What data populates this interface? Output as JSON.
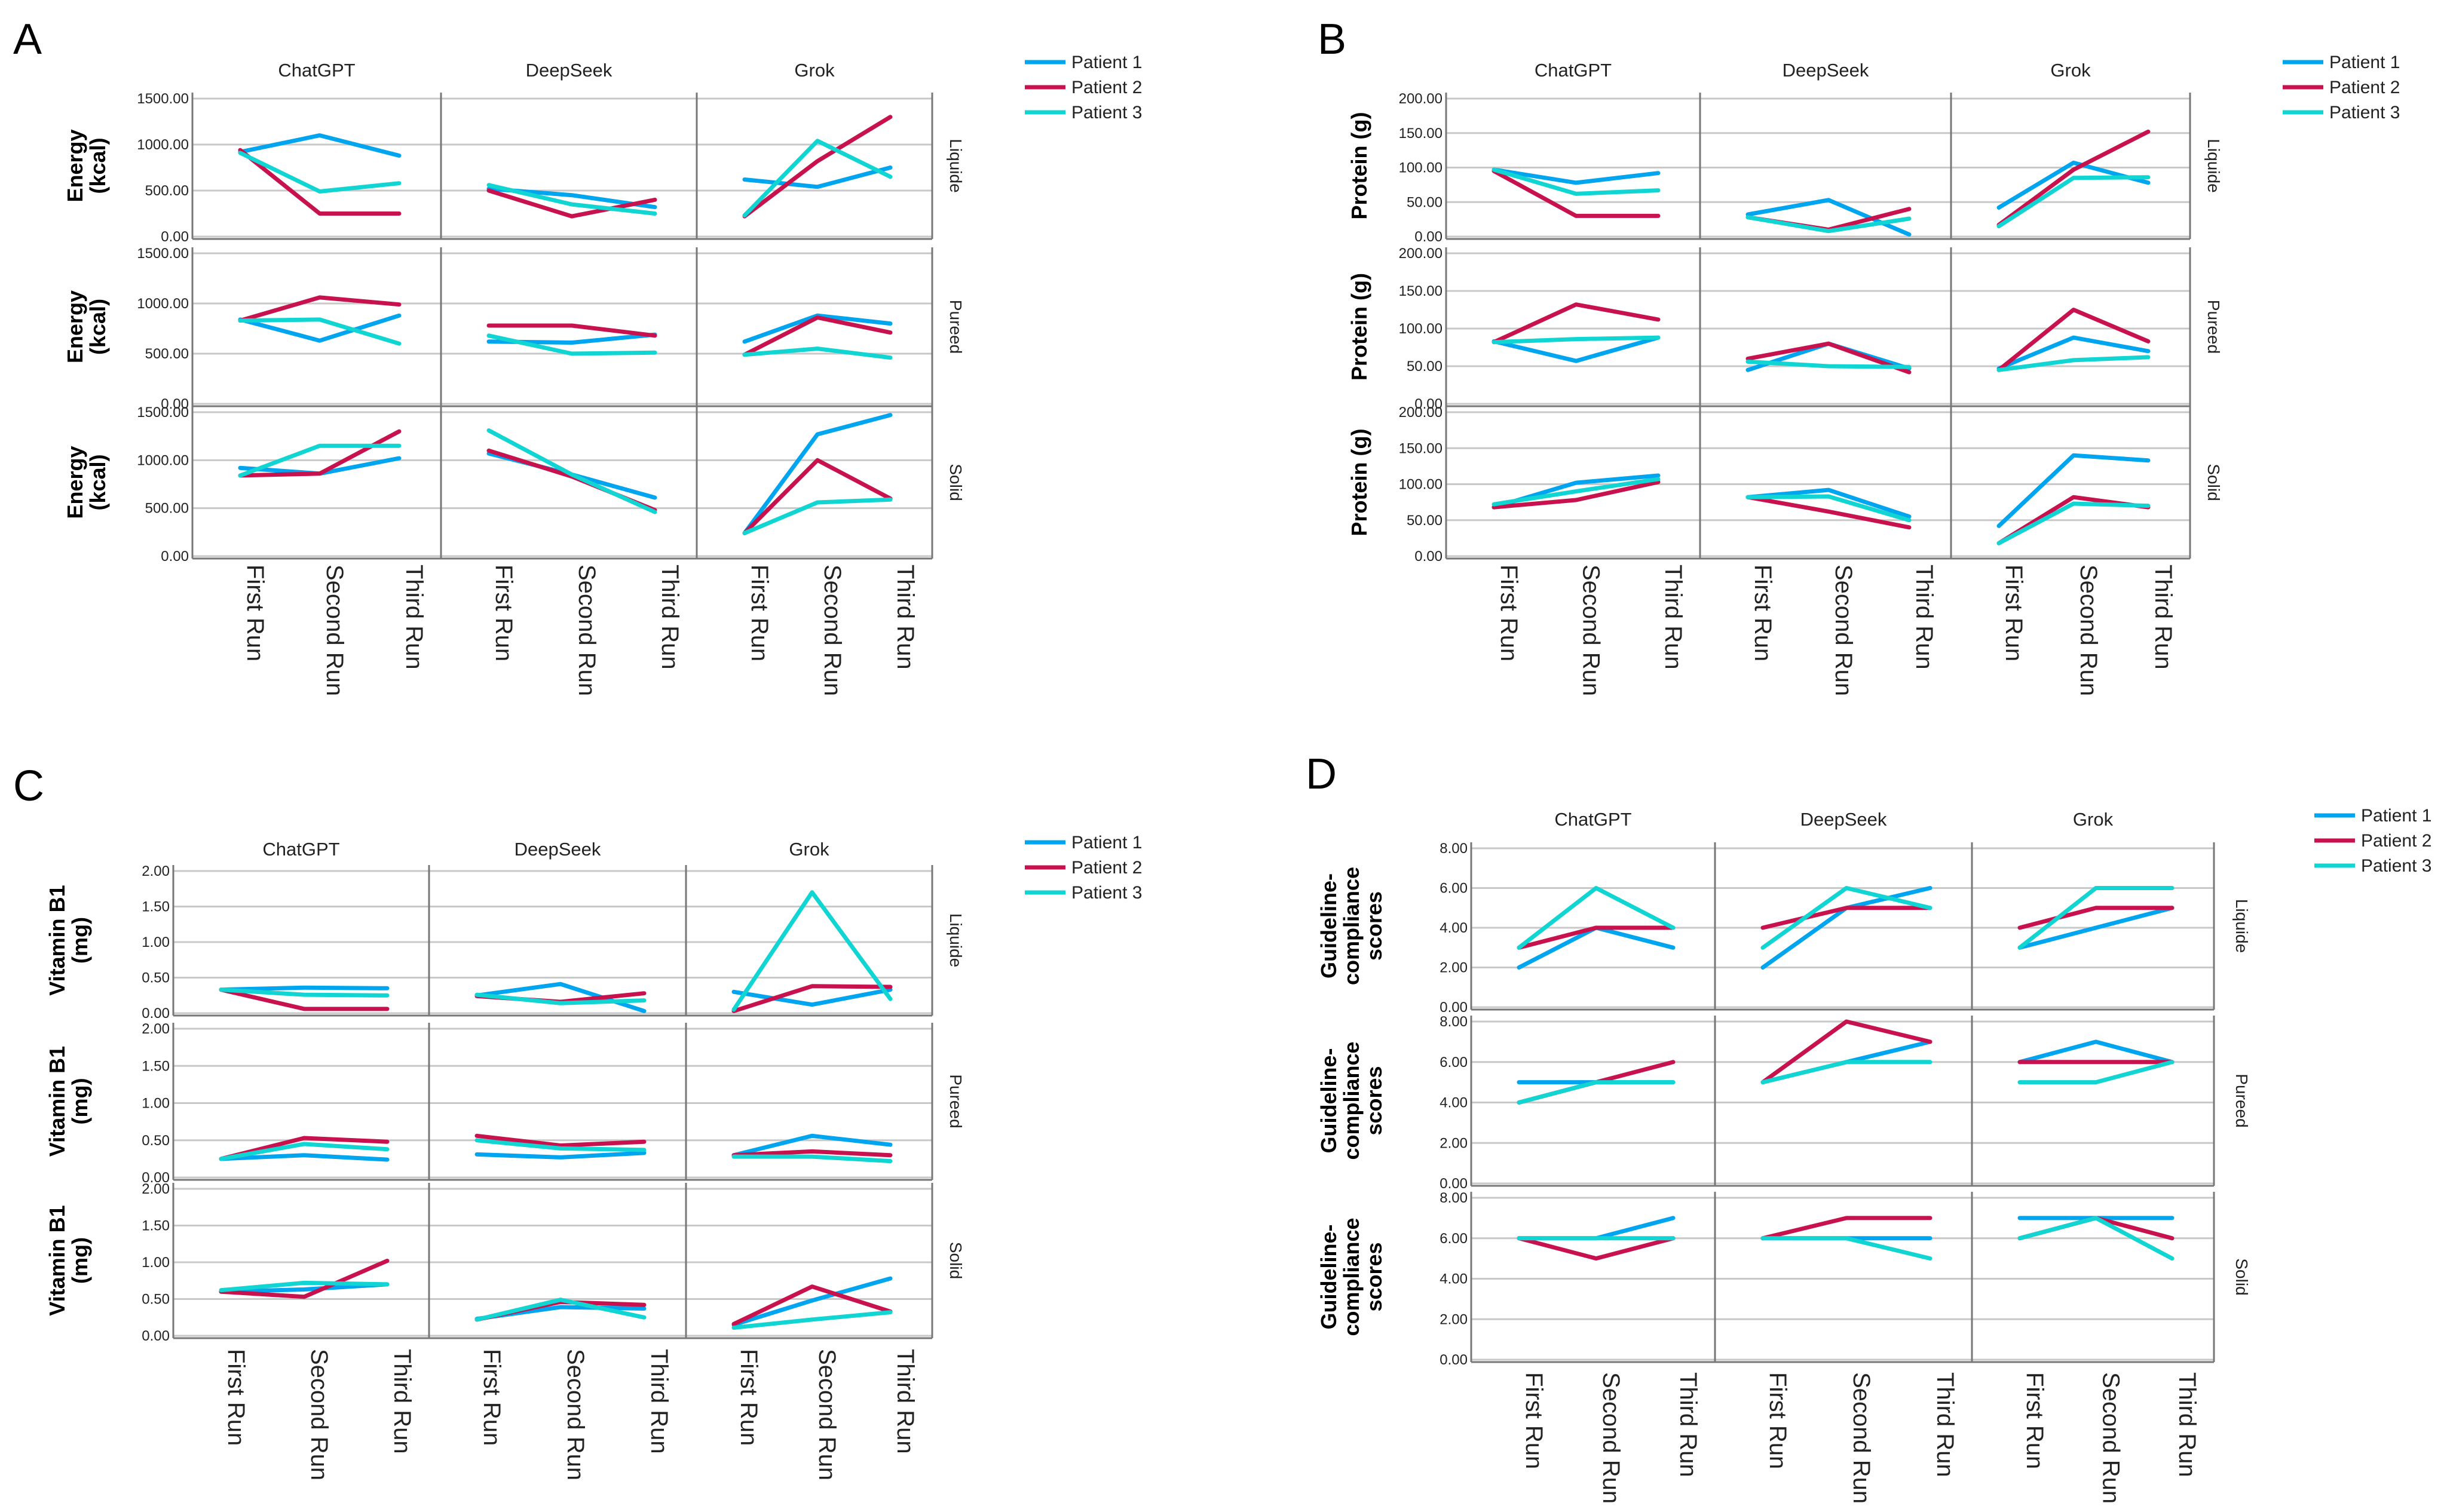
{
  "chart_data": [
    {
      "type": "line",
      "panel": "A",
      "ylabel": "Energy (kcal)",
      "ylabel_lines": [
        "Energy",
        "(kcal)"
      ],
      "ylim": [
        0,
        1500
      ],
      "yticks": [
        "0.00",
        "500.00",
        "1000.00",
        "1500.00"
      ],
      "ytick_values": [
        0,
        500,
        1000,
        1500
      ],
      "columns": [
        "ChatGPT",
        "DeepSeek",
        "Grok"
      ],
      "rows": [
        "Liquide",
        "Pureed",
        "Solid"
      ],
      "categories": [
        "First Run",
        "Second Run",
        "Third Run"
      ],
      "legend": [
        "Patient 1",
        "Patient 2",
        "Patient 3"
      ],
      "values": [
        [
          [
            [
              920,
              1100,
              880
            ],
            [
              940,
              250,
              250
            ],
            [
              910,
              490,
              580
            ]
          ],
          [
            [
              520,
              450,
              320
            ],
            [
              500,
              220,
              400
            ],
            [
              560,
              350,
              250
            ]
          ],
          [
            [
              620,
              540,
              750
            ],
            [
              220,
              820,
              1300
            ],
            [
              230,
              1040,
              650
            ]
          ]
        ],
        [
          [
            [
              840,
              630,
              880
            ],
            [
              830,
              1060,
              990
            ],
            [
              830,
              840,
              600
            ]
          ],
          [
            [
              620,
              610,
              690
            ],
            [
              780,
              780,
              680
            ],
            [
              680,
              500,
              510
            ]
          ],
          [
            [
              620,
              880,
              800
            ],
            [
              490,
              860,
              710
            ],
            [
              490,
              550,
              460
            ]
          ]
        ],
        [
          [
            [
              920,
              860,
              1020
            ],
            [
              840,
              860,
              1300
            ],
            [
              840,
              1150,
              1150
            ]
          ],
          [
            [
              1070,
              850,
              610
            ],
            [
              1100,
              830,
              480
            ],
            [
              1310,
              850,
              460
            ]
          ],
          [
            [
              240,
              1270,
              1470
            ],
            [
              240,
              1000,
              600
            ],
            [
              240,
              560,
              590
            ]
          ]
        ]
      ]
    },
    {
      "type": "line",
      "panel": "B",
      "ylabel": "Protein (g)",
      "ylabel_lines": [
        "Protein (g)"
      ],
      "ylim": [
        0,
        200
      ],
      "yticks": [
        "0.00",
        "50.00",
        "100.00",
        "150.00",
        "200.00"
      ],
      "ytick_values": [
        0,
        50,
        100,
        150,
        200
      ],
      "columns": [
        "ChatGPT",
        "DeepSeek",
        "Grok"
      ],
      "rows": [
        "Liquide",
        "Pureed",
        "Solid"
      ],
      "categories": [
        "First Run",
        "Second Run",
        "Third Run"
      ],
      "legend": [
        "Patient 1",
        "Patient 2",
        "Patient 3"
      ],
      "values": [
        [
          [
            [
              97,
              78,
              92
            ],
            [
              95,
              30,
              30
            ],
            [
              97,
              62,
              67
            ]
          ],
          [
            [
              32,
              53,
              3
            ],
            [
              28,
              10,
              40
            ],
            [
              28,
              8,
              26
            ]
          ],
          [
            [
              42,
              107,
              78
            ],
            [
              17,
              97,
              152
            ],
            [
              15,
              85,
              86
            ]
          ]
        ],
        [
          [
            [
              83,
              57,
              88
            ],
            [
              82,
              132,
              112
            ],
            [
              82,
              86,
              88
            ]
          ],
          [
            [
              45,
              80,
              47
            ],
            [
              60,
              80,
              42
            ],
            [
              56,
              50,
              49
            ]
          ],
          [
            [
              47,
              88,
              70
            ],
            [
              45,
              125,
              83
            ],
            [
              45,
              58,
              62
            ]
          ]
        ],
        [
          [
            [
              68,
              102,
              112
            ],
            [
              68,
              78,
              103
            ],
            [
              72,
              90,
              107
            ]
          ],
          [
            [
              82,
              92,
              55
            ],
            [
              82,
              62,
              40
            ],
            [
              82,
              83,
              50
            ]
          ],
          [
            [
              42,
              140,
              133
            ],
            [
              18,
              82,
              68
            ],
            [
              18,
              73,
              70
            ]
          ]
        ]
      ]
    },
    {
      "type": "line",
      "panel": "C",
      "ylabel": "Vitamin B1 (mg)",
      "ylabel_lines": [
        "Vitamin B1",
        "(mg)"
      ],
      "ylim": [
        0,
        2
      ],
      "yticks": [
        "0.00",
        "0.50",
        "1.00",
        "1.50",
        "2.00"
      ],
      "ytick_values": [
        0,
        0.5,
        1,
        1.5,
        2
      ],
      "columns": [
        "ChatGPT",
        "DeepSeek",
        "Grok"
      ],
      "rows": [
        "Liquide",
        "Pureed",
        "Solid"
      ],
      "categories": [
        "First Run",
        "Second Run",
        "Third Run"
      ],
      "legend": [
        "Patient 1",
        "Patient 2",
        "Patient 3"
      ],
      "values": [
        [
          [
            [
              0.33,
              0.36,
              0.35
            ],
            [
              0.33,
              0.06,
              0.06
            ],
            [
              0.33,
              0.26,
              0.25
            ]
          ],
          [
            [
              0.25,
              0.41,
              0.03
            ],
            [
              0.24,
              0.16,
              0.28
            ],
            [
              0.26,
              0.14,
              0.18
            ]
          ],
          [
            [
              0.3,
              0.12,
              0.33
            ],
            [
              0.03,
              0.38,
              0.37
            ],
            [
              0.05,
              1.7,
              0.2
            ]
          ]
        ],
        [
          [
            [
              0.25,
              0.3,
              0.24
            ],
            [
              0.25,
              0.53,
              0.48
            ],
            [
              0.25,
              0.45,
              0.38
            ]
          ],
          [
            [
              0.31,
              0.27,
              0.33
            ],
            [
              0.56,
              0.43,
              0.48
            ],
            [
              0.5,
              0.39,
              0.37
            ]
          ],
          [
            [
              0.3,
              0.56,
              0.44
            ],
            [
              0.3,
              0.35,
              0.3
            ],
            [
              0.28,
              0.28,
              0.22
            ]
          ]
        ],
        [
          [
            [
              0.6,
              0.63,
              0.7
            ],
            [
              0.6,
              0.53,
              1.02
            ],
            [
              0.62,
              0.72,
              0.7
            ]
          ],
          [
            [
              0.23,
              0.39,
              0.37
            ],
            [
              0.22,
              0.46,
              0.42
            ],
            [
              0.22,
              0.49,
              0.25
            ]
          ],
          [
            [
              0.15,
              0.48,
              0.78
            ],
            [
              0.16,
              0.67,
              0.33
            ],
            [
              0.11,
              0.22,
              0.32
            ]
          ]
        ]
      ]
    },
    {
      "type": "line",
      "panel": "D",
      "ylabel": "Guideline-compliance scores",
      "ylabel_lines": [
        "Guideline-",
        "compliance",
        "scores"
      ],
      "ylim": [
        0,
        8
      ],
      "yticks": [
        "0.00",
        "2.00",
        "4.00",
        "6.00",
        "8.00"
      ],
      "ytick_values": [
        0,
        2,
        4,
        6,
        8
      ],
      "columns": [
        "ChatGPT",
        "DeepSeek",
        "Grok"
      ],
      "rows": [
        "Liquide",
        "Pureed",
        "Solid"
      ],
      "categories": [
        "First Run",
        "Second Run",
        "Third Run"
      ],
      "legend": [
        "Patient 1",
        "Patient 2",
        "Patient 3"
      ],
      "values": [
        [
          [
            [
              2,
              4,
              3
            ],
            [
              3,
              4,
              4
            ],
            [
              3,
              6,
              4
            ]
          ],
          [
            [
              2,
              5,
              6
            ],
            [
              4,
              5,
              5
            ],
            [
              3,
              6,
              5
            ]
          ],
          [
            [
              3,
              4,
              5
            ],
            [
              4,
              5,
              5
            ],
            [
              3,
              6,
              6
            ]
          ]
        ],
        [
          [
            [
              5,
              5,
              5
            ],
            [
              4,
              5,
              6
            ],
            [
              4,
              5,
              5
            ]
          ],
          [
            [
              5,
              6,
              7
            ],
            [
              5,
              8,
              7
            ],
            [
              5,
              6,
              6
            ]
          ],
          [
            [
              6,
              7,
              6
            ],
            [
              6,
              6,
              6
            ],
            [
              5,
              5,
              6
            ]
          ]
        ],
        [
          [
            [
              6,
              6,
              7
            ],
            [
              6,
              5,
              6
            ],
            [
              6,
              6,
              6
            ]
          ],
          [
            [
              6,
              6,
              6
            ],
            [
              6,
              7,
              7
            ],
            [
              6,
              6,
              5
            ]
          ],
          [
            [
              7,
              7,
              7
            ],
            [
              6,
              7,
              6
            ],
            [
              6,
              7,
              5
            ]
          ]
        ]
      ]
    }
  ],
  "colors": {
    "patient1": "#00a5ef",
    "patient2": "#c8124e",
    "patient3": "#10d5d2"
  }
}
